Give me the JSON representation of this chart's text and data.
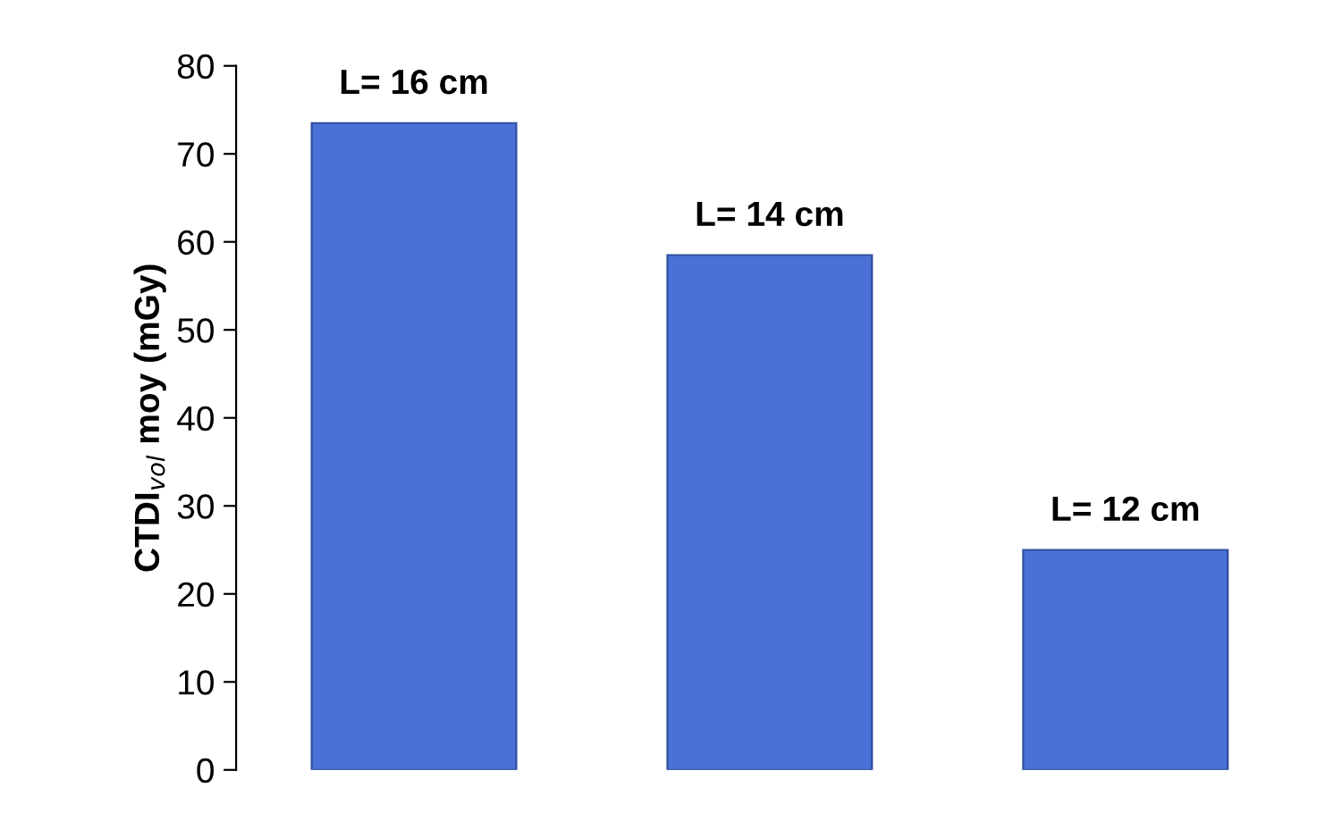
{
  "chart_data": {
    "type": "bar",
    "categories": [
      "L= 16 cm",
      "L= 14 cm",
      "L= 12 cm"
    ],
    "values": [
      73.5,
      58.5,
      25
    ],
    "color": "#4a72d6",
    "ylabel": "CTDI$_{vol}$ moy (mGy)",
    "ylim": [
      0,
      80
    ],
    "yticks": [
      0,
      10,
      20,
      30,
      40,
      50,
      60,
      70,
      80
    ],
    "grid": false,
    "legend": false
  }
}
